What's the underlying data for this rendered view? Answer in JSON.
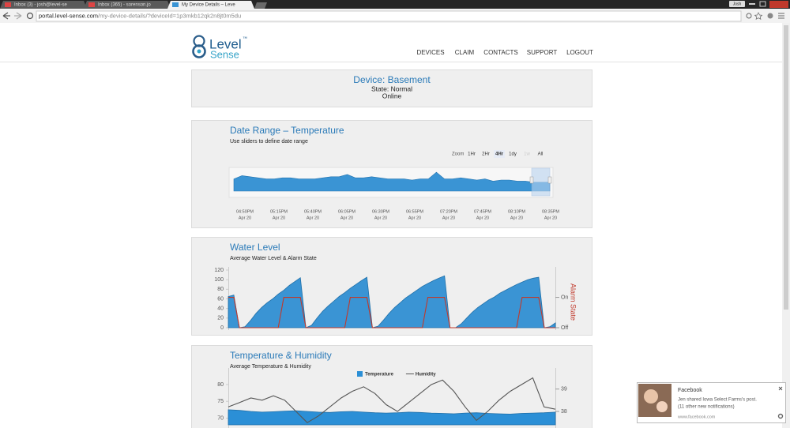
{
  "browser": {
    "tabs": [
      "Inbox (3) - josh@level-se",
      "Inbox (365) - sorenson.jo",
      "My Device Details – Leve"
    ],
    "user": "Josh",
    "url_host": "portal.level-sense.com",
    "url_path": "/my-device-details/?deviceId=1p3mkb12qk2n8jt0m5du"
  },
  "header": {
    "logo_top": "Level",
    "logo_bottom": "Sense",
    "trademark": "™",
    "nav": [
      "DEVICES",
      "CLAIM",
      "CONTACTS",
      "SUPPORT",
      "LOGOUT"
    ]
  },
  "device": {
    "title": "Device: Basement",
    "state": "State: Normal",
    "status": "Online"
  },
  "chart_data": [
    {
      "type": "navigator",
      "title": "Date Range – Temperature",
      "subtitle": "Use sliders to define date range",
      "zoom_label": "Zoom",
      "zoom_buttons": [
        "1Hr",
        "2Hr",
        "4Hr",
        "1dy",
        "1w",
        "All"
      ],
      "zoom_selected": 2,
      "zoom_disabled": 4,
      "color": "#3a94d4",
      "ylim": [
        60,
        80
      ],
      "values": [
        71,
        74,
        73,
        72,
        71,
        71,
        72,
        72,
        71,
        71,
        71,
        72,
        73,
        73,
        75,
        72,
        72,
        73,
        72,
        71,
        71,
        71,
        70,
        71,
        71,
        77,
        71,
        71,
        72,
        71,
        70,
        71,
        69,
        70,
        70,
        69,
        69,
        68,
        68,
        68
      ],
      "xtick_labels": [
        "04:50PM",
        "05:15PM",
        "05:40PM",
        "06:05PM",
        "06:30PM",
        "06:55PM",
        "07:20PM",
        "07:45PM",
        "08:10PM",
        "08:35PM"
      ],
      "xtick_dates": [
        "Apr 20",
        "Apr 20",
        "Apr 20",
        "Apr 20",
        "Apr 20",
        "Apr 20",
        "Apr 20",
        "Apr 20",
        "Apr 20",
        "Apr 20"
      ]
    },
    {
      "type": "combo",
      "title": "Water Level",
      "subtitle": "Average Water Level & Alarm State",
      "ylim": [
        0,
        120
      ],
      "yticks": [
        0,
        20,
        40,
        60,
        80,
        100,
        120
      ],
      "y2label": "Alarm State",
      "y2color": "#c0392b",
      "y2lim": [
        0,
        1.9
      ],
      "y2ticks": [
        {
          "value": 0,
          "label": "Off"
        },
        {
          "value": 1,
          "label": "On"
        }
      ],
      "series": [
        {
          "style": "area",
          "color": "#3a94d4",
          "values": [
            65,
            68,
            0,
            2,
            15,
            30,
            42,
            52,
            60,
            70,
            78,
            88,
            96,
            104,
            0,
            5,
            20,
            34,
            45,
            55,
            65,
            73,
            82,
            90,
            98,
            105,
            0,
            3,
            16,
            30,
            42,
            52,
            62,
            70,
            78,
            86,
            92,
            98,
            103,
            108,
            0,
            0,
            8,
            20,
            32,
            42,
            50,
            58,
            64,
            72,
            78,
            84,
            90,
            95,
            100,
            103,
            105,
            0,
            2,
            10
          ]
        },
        {
          "style": "line",
          "color": "#c0392b",
          "axis": "y2",
          "values": [
            1,
            1,
            0,
            0,
            0,
            0,
            0,
            0,
            0,
            0,
            1,
            1,
            1,
            1,
            0,
            0,
            0,
            0,
            0,
            0,
            0,
            0,
            1,
            1,
            1,
            1,
            0,
            0,
            0,
            0,
            0,
            0,
            0,
            0,
            0,
            0,
            1,
            1,
            1,
            1,
            0,
            0,
            0,
            0,
            0,
            0,
            0,
            0,
            0,
            0,
            0,
            0,
            0,
            1,
            1,
            1,
            1,
            0,
            0,
            0
          ]
        }
      ]
    },
    {
      "type": "combo",
      "title": "Temperature & Humidity",
      "subtitle": "Average Temperature & Humidity",
      "ylim": [
        68,
        84
      ],
      "yticks": [
        70,
        75,
        80
      ],
      "y2lim": [
        37.4,
        39.8
      ],
      "y2ticks": [
        38,
        39
      ],
      "series": [
        {
          "name": "Temperature",
          "style": "area",
          "color": "#2b8fd6",
          "values": [
            72.5,
            72.3,
            72.0,
            71.8,
            71.9,
            72.1,
            72.2,
            72.0,
            71.8,
            71.7,
            71.9,
            72.0,
            71.8,
            71.6,
            71.5,
            71.6,
            71.8,
            71.7,
            71.5,
            71.4,
            71.3,
            71.5,
            71.6,
            71.4,
            71.3,
            71.2,
            71.4,
            71.5,
            71.6,
            71.8
          ]
        },
        {
          "name": "Humidity",
          "style": "line",
          "color": "#555555",
          "axis": "y2",
          "values": [
            38.2,
            38.4,
            38.6,
            38.5,
            38.7,
            38.5,
            38.0,
            37.5,
            37.8,
            38.2,
            38.6,
            38.9,
            39.1,
            38.8,
            38.3,
            38.0,
            38.4,
            38.8,
            39.2,
            39.4,
            38.9,
            38.2,
            37.6,
            38.0,
            38.5,
            38.9,
            39.2,
            39.5,
            38.2,
            38.1
          ]
        }
      ]
    }
  ],
  "notification": {
    "app": "Facebook",
    "message": "Jen shared Iowa Select Farms's post.",
    "more": "(11 other new notifications)",
    "site": "www.facebook.com"
  }
}
